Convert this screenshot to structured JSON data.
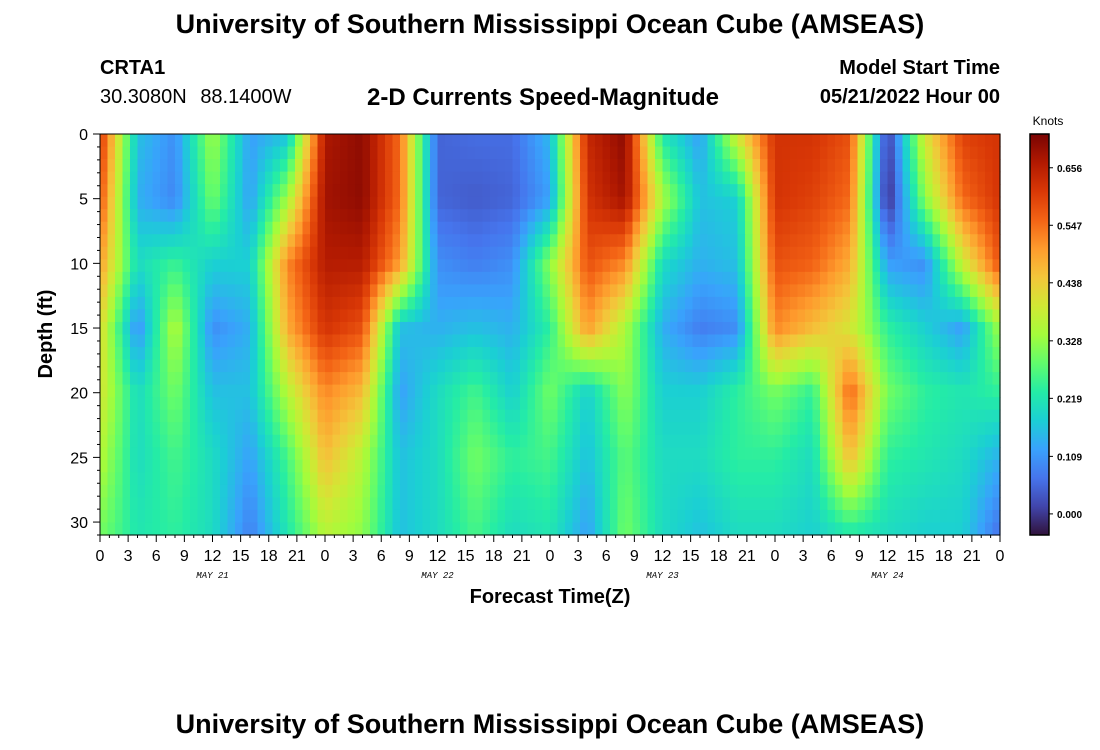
{
  "header": {
    "title": "University of Southern Mississippi Ocean Cube (AMSEAS)",
    "station": "CRTA1",
    "latitude": "30.3080N",
    "longitude": "88.1400W",
    "subtitle": "2-D Currents Speed-Magnitude",
    "model_start_label": "Model Start Time",
    "model_start_value": "05/21/2022 Hour 00"
  },
  "footer": {
    "title": "University of Southern Mississippi Ocean Cube (AMSEAS)"
  },
  "chart_data": {
    "type": "heatmap",
    "title": "2-D Currents Speed-Magnitude",
    "xlabel": "Forecast Time(Z)",
    "ylabel": "Depth (ft)",
    "x_range_hours": [
      0,
      96
    ],
    "x_tick_step_hours": 3,
    "x_tick_labels": [
      "0",
      "3",
      "6",
      "9",
      "12",
      "15",
      "18",
      "21",
      "0",
      "3",
      "6",
      "9",
      "12",
      "15",
      "18",
      "21",
      "0",
      "3",
      "6",
      "9",
      "12",
      "15",
      "18",
      "21",
      "0",
      "3",
      "6",
      "9",
      "12",
      "15",
      "18",
      "21",
      "0"
    ],
    "x_day_labels": [
      {
        "hour": 12,
        "label": "MAY 21"
      },
      {
        "hour": 36,
        "label": "MAY 22"
      },
      {
        "hour": 60,
        "label": "MAY 23"
      },
      {
        "hour": 84,
        "label": "MAY 24"
      }
    ],
    "y_range_ft": [
      0,
      31
    ],
    "y_ticks": [
      0,
      5,
      10,
      15,
      20,
      25,
      30
    ],
    "colorbar": {
      "unit": "Knots",
      "min": -0.04,
      "max": 0.72,
      "ticks": [
        "0.656",
        "0.547",
        "0.438",
        "0.328",
        "0.219",
        "0.109",
        "0.000"
      ],
      "colors": [
        "#30123b",
        "#4145ab",
        "#4675ed",
        "#39a2fc",
        "#1bcfd4",
        "#24eca6",
        "#61fc6c",
        "#a4fc3b",
        "#d1e834",
        "#f3c63a",
        "#fe9b2d",
        "#f36315",
        "#d93806",
        "#b11901",
        "#7a0403"
      ]
    },
    "speed_grid": {
      "columns": 25,
      "hours": [
        0,
        4,
        8,
        12,
        16,
        20,
        24,
        28,
        32,
        36,
        40,
        44,
        48,
        52,
        56,
        60,
        64,
        68,
        72,
        76,
        80,
        84,
        88,
        92,
        96
      ],
      "depths_ft": [
        0,
        5,
        10,
        15,
        20,
        25,
        31
      ],
      "rows": [
        [
          0.62,
          0.16,
          0.1,
          0.34,
          0.12,
          0.16,
          0.67,
          0.7,
          0.55,
          0.05,
          0.06,
          0.06,
          0.15,
          0.64,
          0.7,
          0.22,
          0.12,
          0.4,
          0.62,
          0.62,
          0.58,
          0.0,
          0.4,
          0.6,
          0.62
        ],
        [
          0.58,
          0.14,
          0.09,
          0.3,
          0.12,
          0.34,
          0.68,
          0.7,
          0.55,
          0.05,
          0.04,
          0.05,
          0.12,
          0.62,
          0.68,
          0.35,
          0.16,
          0.18,
          0.62,
          0.6,
          0.55,
          -0.02,
          0.32,
          0.55,
          0.62
        ],
        [
          0.5,
          0.2,
          0.25,
          0.18,
          0.18,
          0.52,
          0.66,
          0.66,
          0.5,
          0.1,
          0.08,
          0.1,
          0.32,
          0.58,
          0.52,
          0.2,
          0.14,
          0.16,
          0.58,
          0.56,
          0.48,
          0.12,
          0.1,
          0.38,
          0.58
        ],
        [
          0.42,
          0.1,
          0.36,
          0.1,
          0.14,
          0.48,
          0.62,
          0.58,
          0.16,
          0.14,
          0.16,
          0.14,
          0.24,
          0.5,
          0.35,
          0.14,
          0.08,
          0.1,
          0.52,
          0.46,
          0.4,
          0.24,
          0.18,
          0.12,
          0.34
        ],
        [
          0.4,
          0.2,
          0.3,
          0.16,
          0.16,
          0.36,
          0.52,
          0.46,
          0.12,
          0.2,
          0.26,
          0.18,
          0.3,
          0.18,
          0.32,
          0.18,
          0.18,
          0.24,
          0.3,
          0.24,
          0.56,
          0.3,
          0.24,
          0.22,
          0.24
        ],
        [
          0.36,
          0.2,
          0.26,
          0.2,
          0.12,
          0.26,
          0.46,
          0.36,
          0.16,
          0.2,
          0.3,
          0.24,
          0.26,
          0.16,
          0.28,
          0.2,
          0.2,
          0.24,
          0.24,
          0.2,
          0.46,
          0.24,
          0.22,
          0.2,
          0.14
        ],
        [
          0.3,
          0.22,
          0.24,
          0.2,
          0.08,
          0.22,
          0.36,
          0.32,
          0.16,
          0.2,
          0.26,
          0.2,
          0.22,
          0.12,
          0.3,
          0.2,
          0.16,
          0.2,
          0.2,
          0.18,
          0.22,
          0.2,
          0.18,
          0.18,
          0.06
        ]
      ]
    }
  }
}
